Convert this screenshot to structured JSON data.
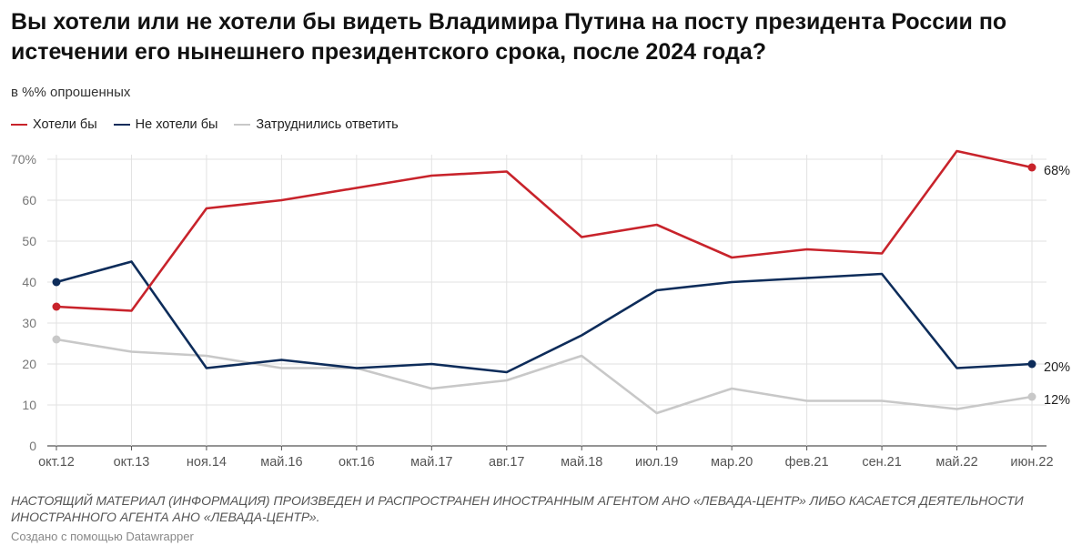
{
  "title": "Вы хотели или не хотели бы видеть Владимира Путина на посту президента России по истечении его нынешнего президентского срока, после 2024 года?",
  "subtitle": "в %% опрошенных",
  "note": "НАСТОЯЩИЙ МАТЕРИАЛ (ИНФОРМАЦИЯ) ПРОИЗВЕДЕН И РАСПРОСТРАНЕН ИНОСТРАННЫМ АГЕНТОМ АНО «ЛЕВАДА-ЦЕНТР» ЛИБО КАСАЕТСЯ ДЕЯТЕЛЬНОСТИ ИНОСТРАННОГО АГЕНТА АНО «ЛЕВАДА-ЦЕНТР».",
  "credit": "Создано с помощью Datawrapper",
  "chart_data": {
    "type": "line",
    "categories": [
      "окт.12",
      "окт.13",
      "ноя.14",
      "май.16",
      "окт.16",
      "май.17",
      "авг.17",
      "май.18",
      "июл.19",
      "мар.20",
      "фев.21",
      "сен.21",
      "май.22",
      "июн.22"
    ],
    "series": [
      {
        "name": "Хотели бы",
        "color": "#c8232b",
        "values": [
          34,
          33,
          58,
          60,
          63,
          66,
          67,
          51,
          54,
          46,
          48,
          47,
          72,
          68
        ],
        "end_label": "68%"
      },
      {
        "name": "Не хотели бы",
        "color": "#0d2c5a",
        "values": [
          40,
          45,
          19,
          21,
          19,
          20,
          18,
          27,
          38,
          40,
          41,
          42,
          19,
          20
        ],
        "end_label": "20%"
      },
      {
        "name": "Затруднились ответить",
        "color": "#c8c8c8",
        "values": [
          26,
          23,
          22,
          19,
          19,
          14,
          16,
          22,
          8,
          14,
          11,
          11,
          9,
          12
        ],
        "end_label": "12%"
      }
    ],
    "ylim": [
      0,
      70
    ],
    "yticks": [
      "0",
      "10",
      "20",
      "30",
      "40",
      "50",
      "60",
      "70%"
    ],
    "grid": true,
    "legend_position": "top-left"
  }
}
